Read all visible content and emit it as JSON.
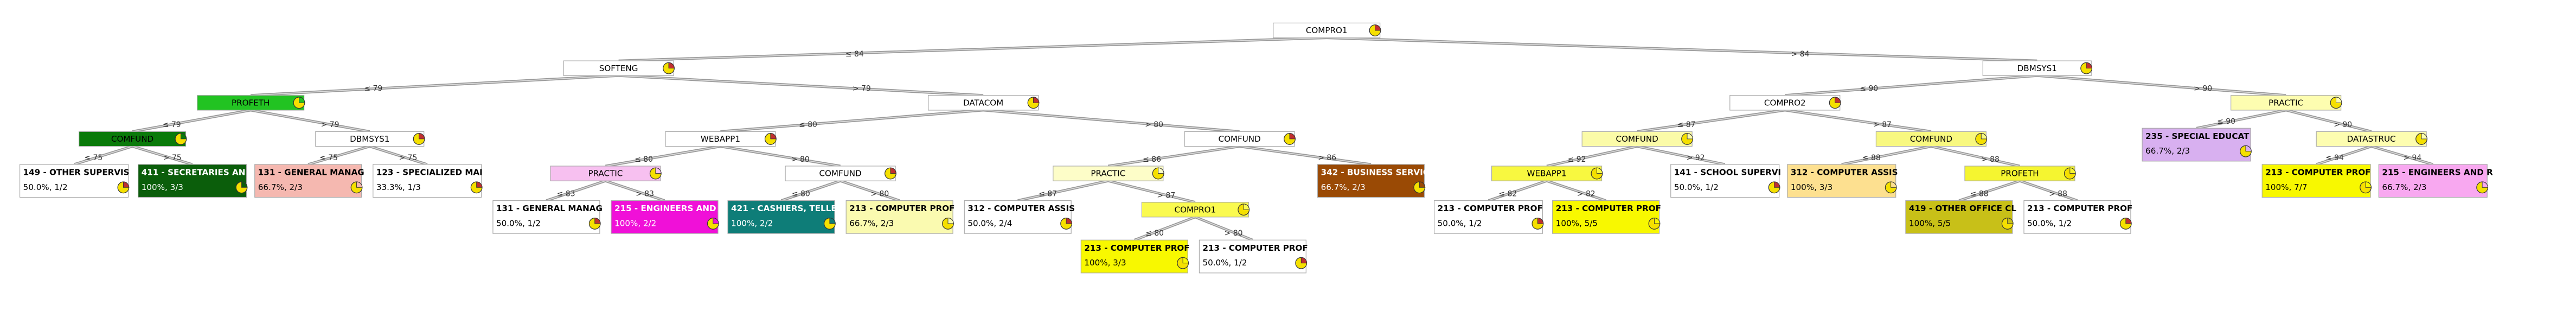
{
  "nodes": [
    {
      "label": "COMPRO1"
    },
    {
      "label": "SOFTENG",
      "condition": "≤ 84",
      "parent": 0
    },
    {
      "label": "DBMSYS1",
      "condition": "> 84",
      "parent": 0
    },
    {
      "label": "PROFETH",
      "condition": "≤ 79",
      "parent": 1
    },
    {
      "label": "DATACOM",
      "condition": "> 79",
      "parent": 1
    },
    {
      "label": "COMPRO2",
      "condition": "≤ 90",
      "parent": 2
    },
    {
      "label": "PRACTIC",
      "condition": "> 90",
      "parent": 2
    },
    {
      "label": "COMFUND",
      "condition": "≤ 79",
      "parent": 3
    },
    {
      "label": "DBMSYS1",
      "condition": "> 79",
      "parent": 3
    },
    {
      "label": "149 - OTHER SUPERVIS",
      "detail": "50.0%, 1/2",
      "condition": "≤ 75",
      "parent": 7
    },
    {
      "label": "411 - SECRETARIES AN",
      "detail": "100%, 3/3",
      "condition": "> 75",
      "parent": 7
    },
    {
      "label": "131 - GENERAL MANAG",
      "detail": "66.7%, 2/3",
      "condition": "≤ 75",
      "parent": 8
    },
    {
      "label": "123 - SPECIALIZED MAI",
      "detail": "33.3%, 1/3",
      "condition": "> 75",
      "parent": 8
    },
    {
      "label": "WEBAPP1",
      "condition": "≤ 80",
      "parent": 4
    },
    {
      "label": "COMFUND",
      "condition": "> 80",
      "parent": 4
    },
    {
      "label": "PRACTIC",
      "condition": "≤ 80",
      "parent": 13
    },
    {
      "label": "COMFUND",
      "condition": "> 80",
      "parent": 13
    },
    {
      "label": "131 - GENERAL MANAG",
      "detail": "50.0%, 1/2",
      "condition": "≤ 83",
      "parent": 15
    },
    {
      "label": "215 - ENGINEERS AND R",
      "detail": "100%, 2/2",
      "condition": "> 83",
      "parent": 15
    },
    {
      "label": "421 - CASHIERS, TELLE",
      "detail": "100%, 2/2",
      "condition": "≤ 80",
      "parent": 16
    },
    {
      "label": "213 - COMPUTER PROF",
      "detail": "66.7%, 2/3",
      "condition": "> 80",
      "parent": 16
    },
    {
      "label": "PRACTIC",
      "condition": "≤ 86",
      "parent": 14
    },
    {
      "label": "342 - BUSINESS SERVIC",
      "detail": "66.7%, 2/3",
      "condition": "> 86",
      "parent": 14
    },
    {
      "label": "312 - COMPUTER ASSIS",
      "detail": "50.0%, 2/4",
      "condition": "≤ 87",
      "parent": 21
    },
    {
      "label": "COMPRO1",
      "condition": "> 87",
      "parent": 21
    },
    {
      "label": "213 - COMPUTER PROF",
      "detail": "100%, 3/3",
      "condition": "≤ 80",
      "parent": 24
    },
    {
      "label": "213 - COMPUTER PROF",
      "detail": "50.0%, 1/2",
      "condition": "> 80",
      "parent": 24
    },
    {
      "label": "COMFUND",
      "condition": "≤ 87",
      "parent": 5
    },
    {
      "label": "COMFUND",
      "condition": "> 87",
      "parent": 5
    },
    {
      "label": "WEBAPP1",
      "condition": "≤ 92",
      "parent": 27
    },
    {
      "label": "141 - SCHOOL SUPERVI",
      "detail": "50.0%, 1/2",
      "condition": "> 92",
      "parent": 27
    },
    {
      "label": "213 - COMPUTER PROF",
      "detail": "50.0%, 1/2",
      "condition": "≤ 82",
      "parent": 29
    },
    {
      "label": "213 - COMPUTER PROF",
      "detail": "100%, 5/5",
      "condition": "> 82",
      "parent": 29
    },
    {
      "label": "312 - COMPUTER ASSIS",
      "detail": "100%, 3/3",
      "condition": "≤ 88",
      "parent": 28
    },
    {
      "label": "PROFETH",
      "condition": "> 88",
      "parent": 28
    },
    {
      "label": "419 - OTHER OFFICE CL",
      "detail": "100%, 5/5",
      "condition": "≤ 88",
      "parent": 34
    },
    {
      "label": "213 - COMPUTER PROF",
      "detail": "50.0%, 1/2",
      "condition": "> 88",
      "parent": 34
    },
    {
      "label": "235 - SPECIAL EDUCAT",
      "detail": "66.7%, 2/3",
      "condition": "≤ 90",
      "parent": 6
    },
    {
      "label": "DATASTRUC",
      "condition": "> 90",
      "parent": 6
    },
    {
      "label": "213 - COMPUTER PROF",
      "detail": "100%, 7/7",
      "condition": "≤ 94",
      "parent": 38
    },
    {
      "label": "215 - ENGINEERS AND R",
      "detail": "66.7%, 2/3",
      "condition": "> 94",
      "parent": 38
    }
  ]
}
